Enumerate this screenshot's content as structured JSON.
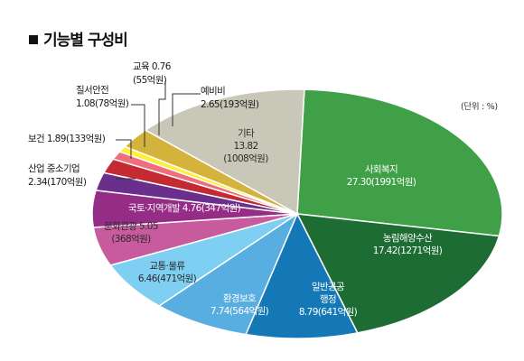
{
  "title": "기능별 구성비",
  "unit": "(단위 : %)",
  "chart_data": {
    "type": "pie",
    "title": "기능별 구성비",
    "unit": "(단위 : %)",
    "slices": [
      {
        "name": "사회복지",
        "value": 27.3,
        "amount": "1991억원",
        "color": "#3fa047",
        "line1": "사회복지",
        "line2": "27.30(1991억원)"
      },
      {
        "name": "농림해양수산",
        "value": 17.42,
        "amount": "1271억원",
        "color": "#1d6c33",
        "line1": "농림해양수산",
        "line2": "17.42(1271억원)"
      },
      {
        "name": "일반공공행정",
        "value": 8.79,
        "amount": "641억원",
        "color": "#1578b6",
        "line1": "일반공공",
        "line2": "행정",
        "line3": "8.79(641억원)"
      },
      {
        "name": "환경보호",
        "value": 7.74,
        "amount": "564억원",
        "color": "#58aee0",
        "line1": "환경보호",
        "line2": "7.74(564억원)"
      },
      {
        "name": "교통·물류",
        "value": 6.46,
        "amount": "471억원",
        "color": "#7ecff2",
        "line1": "교통·물류",
        "line2": "6.46(471억원)"
      },
      {
        "name": "문화관광",
        "value": 5.05,
        "amount": "368억원",
        "color": "#c85b9e",
        "line1": "문화관광 5.05",
        "line2": "(368억원)"
      },
      {
        "name": "국토·지역개발",
        "value": 4.76,
        "amount": "347억원",
        "color": "#952c86",
        "line1": "국토·지역개발 4.76(347억원)"
      },
      {
        "name": "산업 중소기업",
        "value": 2.34,
        "amount": "170억원",
        "color": "#6a2f8c",
        "line1": "산업 중소기업",
        "line2": "2.34(170억원)"
      },
      {
        "name": "보건",
        "value": 1.89,
        "amount": "133억원",
        "color": "#c42a32",
        "line1": "보건 1.89(133억원)"
      },
      {
        "name": "질서안전",
        "value": 1.08,
        "amount": "78억원",
        "color": "#f06d7e",
        "line1": "질서안전",
        "line2": "1.08(78억원)"
      },
      {
        "name": "교육",
        "value": 0.76,
        "amount": "55억원",
        "color": "#ffee3a",
        "line1": "교육 0.76",
        "line2": "(55억원)"
      },
      {
        "name": "예비비",
        "value": 2.65,
        "amount": "193억원",
        "color": "#d4b33c",
        "line1": "예비비",
        "line2": "2.65(193억원)"
      },
      {
        "name": "기타",
        "value": 13.82,
        "amount": "1008억원",
        "color": "#c9c7b8",
        "line1": "기타",
        "line2": "13.82",
        "line3": "(1008억원)"
      }
    ]
  }
}
